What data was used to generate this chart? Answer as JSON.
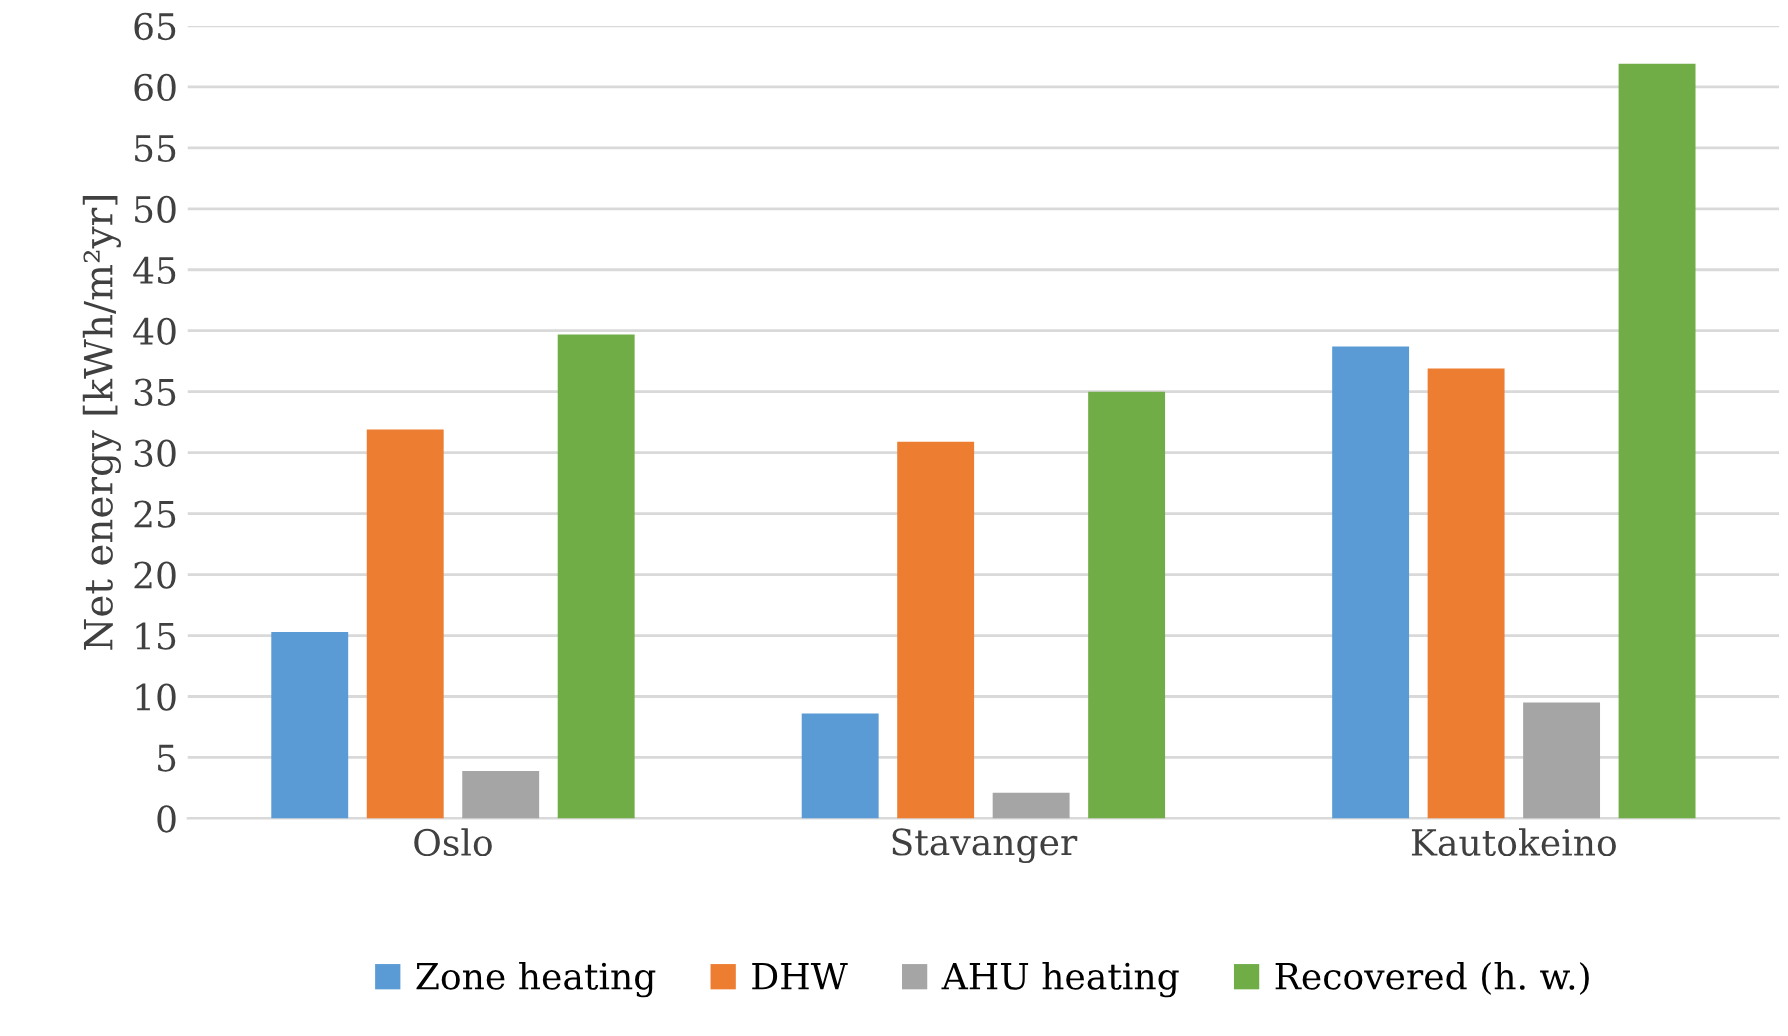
{
  "chart_data": {
    "type": "bar",
    "ylabel": "Net energy [kWh/m²yr]",
    "categories": [
      "Oslo",
      "Stavanger",
      "Kautokeino"
    ],
    "series": [
      {
        "name": "Zone heating",
        "color": "#5b9bd5",
        "values": [
          15.3,
          8.6,
          38.7
        ]
      },
      {
        "name": "DHW",
        "color": "#ed7d31",
        "values": [
          31.9,
          30.9,
          36.9
        ]
      },
      {
        "name": "AHU heating",
        "color": "#a5a5a5",
        "values": [
          3.9,
          2.1,
          9.5
        ]
      },
      {
        "name": "Recovered (h. w.)",
        "color": "#70ad47",
        "values": [
          39.7,
          35.0,
          61.9
        ]
      }
    ],
    "ylim": [
      0,
      65
    ],
    "yticks": [
      0,
      5,
      10,
      15,
      20,
      25,
      30,
      35,
      40,
      45,
      50,
      55,
      60,
      65
    ],
    "grid": "y",
    "legend": "bottom"
  }
}
